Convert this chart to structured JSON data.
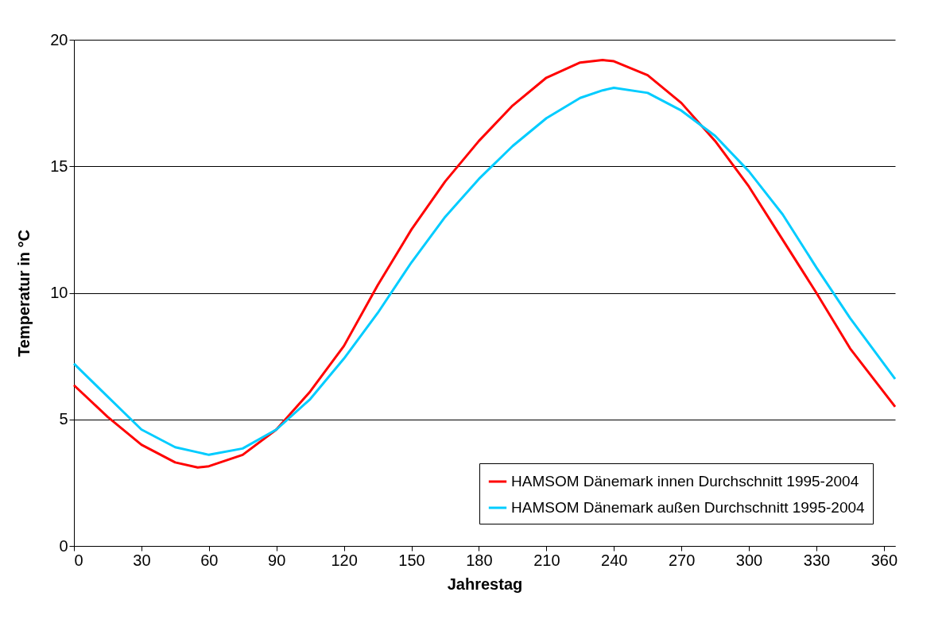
{
  "chart_data": {
    "type": "line",
    "xlabel": "Jahrestag",
    "ylabel": "Temperatur in °C",
    "x": [
      0,
      15,
      30,
      45,
      55,
      60,
      75,
      90,
      105,
      120,
      135,
      150,
      165,
      180,
      195,
      210,
      225,
      235,
      240,
      255,
      270,
      285,
      300,
      315,
      330,
      345,
      365
    ],
    "series": [
      {
        "name": "HAMSOM Dänemark innen Durchschnitt 1995-2004",
        "color": "#ff0000",
        "values": [
          6.35,
          5.1,
          4.0,
          3.3,
          3.1,
          3.15,
          3.6,
          4.6,
          6.1,
          7.9,
          10.3,
          12.5,
          14.4,
          16.0,
          17.4,
          18.5,
          19.1,
          19.2,
          19.15,
          18.6,
          17.5,
          16.0,
          14.2,
          12.1,
          10.0,
          7.8,
          5.5
        ]
      },
      {
        "name": "HAMSOM Dänemark außen Durchschnitt 1995-2004",
        "color": "#00ccff",
        "values": [
          7.2,
          5.9,
          4.6,
          3.9,
          3.7,
          3.6,
          3.85,
          4.6,
          5.8,
          7.4,
          9.2,
          11.2,
          13.0,
          14.5,
          15.8,
          16.9,
          17.7,
          18.0,
          18.1,
          17.9,
          17.2,
          16.2,
          14.8,
          13.1,
          11.0,
          9.0,
          6.6
        ]
      }
    ],
    "xlim": [
      0,
      365
    ],
    "xticks": [
      0,
      30,
      60,
      90,
      120,
      150,
      180,
      210,
      240,
      270,
      300,
      330,
      360
    ],
    "ylim": [
      0,
      20
    ],
    "yticks": [
      0,
      5,
      10,
      15,
      20
    ],
    "grid": "y",
    "legend": "bottom right",
    "marker": "none",
    "line_style": "solid"
  }
}
